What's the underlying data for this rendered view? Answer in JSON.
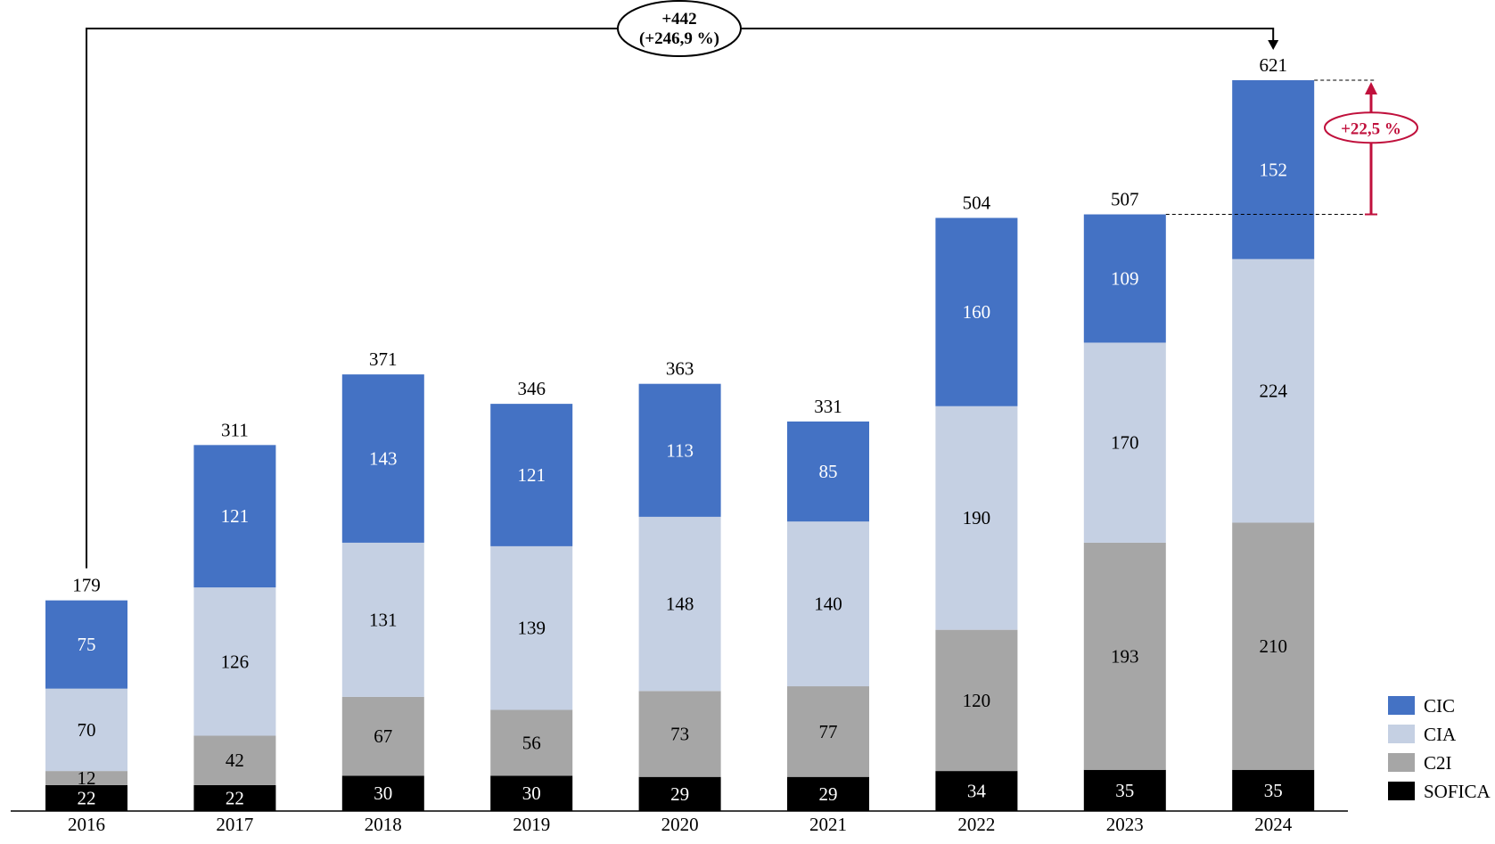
{
  "chart_data": {
    "type": "bar",
    "stacked": true,
    "categories": [
      "2016",
      "2017",
      "2018",
      "2019",
      "2020",
      "2021",
      "2022",
      "2023",
      "2024"
    ],
    "series": [
      {
        "name": "SOFICA",
        "color": "#000000",
        "values": [
          22,
          22,
          30,
          30,
          29,
          29,
          34,
          35,
          35
        ]
      },
      {
        "name": "C2I",
        "color": "#a6a6a6",
        "values": [
          12,
          42,
          67,
          56,
          73,
          77,
          120,
          193,
          210
        ]
      },
      {
        "name": "CIA",
        "color": "#c5d0e3",
        "values": [
          70,
          126,
          131,
          139,
          148,
          140,
          190,
          170,
          224
        ]
      },
      {
        "name": "CIC",
        "color": "#4472c4",
        "values": [
          75,
          121,
          143,
          121,
          113,
          85,
          160,
          109,
          152
        ]
      }
    ],
    "totals": [
      "179",
      "311",
      "371",
      "346",
      "363",
      "331",
      "504",
      "507",
      "621"
    ],
    "ylim": [
      0,
      621
    ],
    "grid": false,
    "legend_position": "bottom-right",
    "legend": [
      "CIC",
      "CIA",
      "C2I",
      "SOFICA"
    ],
    "annotations": {
      "overall": {
        "line1": "+442",
        "line2": "(+246,9 %)",
        "from": "2016",
        "to": "2024"
      },
      "last_year": {
        "label": "+22,5 %",
        "from": "2023",
        "to": "2024",
        "color": "#c0103c"
      }
    }
  }
}
